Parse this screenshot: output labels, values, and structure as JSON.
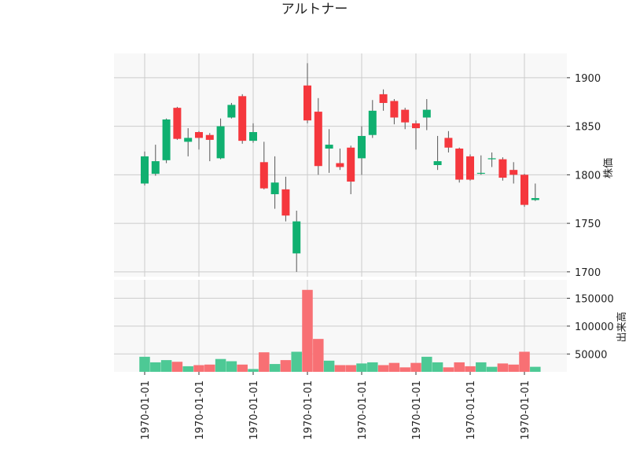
{
  "chart_data": {
    "type": "candlestick",
    "title": "アルトナー",
    "price_axis": {
      "label": "株価",
      "ylim": [
        1695,
        1925
      ],
      "ticks": [
        1700,
        1750,
        1800,
        1850,
        1900
      ]
    },
    "volume_axis": {
      "label": "出来高",
      "ylim": [
        18000,
        183000
      ],
      "ticks": [
        50000,
        100000,
        150000
      ]
    },
    "x_tick_labels": [
      "1970-01-01",
      "1970-01-01",
      "1970-01-01",
      "1970-01-01",
      "1970-01-01",
      "1970-01-01",
      "1970-01-01",
      "1970-01-01"
    ],
    "colors": {
      "up": "#10b070",
      "down": "#f5373d",
      "volume_up": "#4dc995",
      "volume_down": "#f87074"
    },
    "candles": [
      {
        "open": 1791,
        "high": 1824,
        "low": 1789,
        "close": 1819,
        "volume": 45000
      },
      {
        "open": 1801,
        "high": 1831,
        "low": 1799,
        "close": 1814,
        "volume": 35000
      },
      {
        "open": 1815,
        "high": 1858,
        "low": 1812,
        "close": 1857,
        "volume": 39000
      },
      {
        "open": 1869,
        "high": 1870,
        "low": 1836,
        "close": 1837,
        "volume": 36000
      },
      {
        "open": 1834,
        "high": 1848,
        "low": 1819,
        "close": 1838,
        "volume": 28000
      },
      {
        "open": 1844,
        "high": 1845,
        "low": 1826,
        "close": 1838,
        "volume": 30000
      },
      {
        "open": 1841,
        "high": 1843,
        "low": 1814,
        "close": 1836,
        "volume": 31000
      },
      {
        "open": 1817,
        "high": 1858,
        "low": 1816,
        "close": 1850,
        "volume": 41000
      },
      {
        "open": 1859,
        "high": 1874,
        "low": 1858,
        "close": 1872,
        "volume": 37000
      },
      {
        "open": 1881,
        "high": 1883,
        "low": 1832,
        "close": 1835,
        "volume": 31000
      },
      {
        "open": 1835,
        "high": 1853,
        "low": 1833,
        "close": 1844,
        "volume": 23000
      },
      {
        "open": 1813,
        "high": 1834,
        "low": 1785,
        "close": 1786,
        "volume": 53000
      },
      {
        "open": 1780,
        "high": 1819,
        "low": 1765,
        "close": 1792,
        "volume": 32000
      },
      {
        "open": 1785,
        "high": 1798,
        "low": 1752,
        "close": 1758,
        "volume": 39000
      },
      {
        "open": 1719,
        "high": 1763,
        "low": 1700,
        "close": 1752,
        "volume": 54000
      },
      {
        "open": 1892,
        "high": 1915,
        "low": 1853,
        "close": 1856,
        "volume": 165000
      },
      {
        "open": 1865,
        "high": 1879,
        "low": 1800,
        "close": 1809,
        "volume": 77000
      },
      {
        "open": 1827,
        "high": 1847,
        "low": 1802,
        "close": 1831,
        "volume": 38000
      },
      {
        "open": 1812,
        "high": 1827,
        "low": 1805,
        "close": 1808,
        "volume": 30000
      },
      {
        "open": 1828,
        "high": 1830,
        "low": 1780,
        "close": 1793,
        "volume": 30000
      },
      {
        "open": 1817,
        "high": 1850,
        "low": 1800,
        "close": 1840,
        "volume": 33000
      },
      {
        "open": 1841,
        "high": 1877,
        "low": 1838,
        "close": 1866,
        "volume": 35000
      },
      {
        "open": 1883,
        "high": 1888,
        "low": 1866,
        "close": 1874,
        "volume": 30000
      },
      {
        "open": 1876,
        "high": 1878,
        "low": 1852,
        "close": 1859,
        "volume": 34000
      },
      {
        "open": 1867,
        "high": 1869,
        "low": 1847,
        "close": 1854,
        "volume": 26000
      },
      {
        "open": 1853,
        "high": 1856,
        "low": 1826,
        "close": 1848,
        "volume": 34000
      },
      {
        "open": 1859,
        "high": 1878,
        "low": 1846,
        "close": 1867,
        "volume": 45000
      },
      {
        "open": 1810,
        "high": 1840,
        "low": 1805,
        "close": 1814,
        "volume": 35000
      },
      {
        "open": 1838,
        "high": 1845,
        "low": 1823,
        "close": 1828,
        "volume": 26000
      },
      {
        "open": 1827,
        "high": 1828,
        "low": 1792,
        "close": 1795,
        "volume": 35000
      },
      {
        "open": 1819,
        "high": 1821,
        "low": 1794,
        "close": 1795,
        "volume": 28000
      },
      {
        "open": 1802,
        "high": 1820,
        "low": 1800,
        "close": 1802,
        "volume": 35000
      },
      {
        "open": 1816,
        "high": 1823,
        "low": 1808,
        "close": 1817,
        "volume": 27000
      },
      {
        "open": 1816,
        "high": 1818,
        "low": 1794,
        "close": 1797,
        "volume": 33000
      },
      {
        "open": 1805,
        "high": 1813,
        "low": 1791,
        "close": 1800,
        "volume": 31000
      },
      {
        "open": 1800,
        "high": 1801,
        "low": 1767,
        "close": 1769,
        "volume": 54000
      },
      {
        "open": 1774,
        "high": 1791,
        "low": 1773,
        "close": 1776,
        "volume": 27000
      }
    ]
  }
}
